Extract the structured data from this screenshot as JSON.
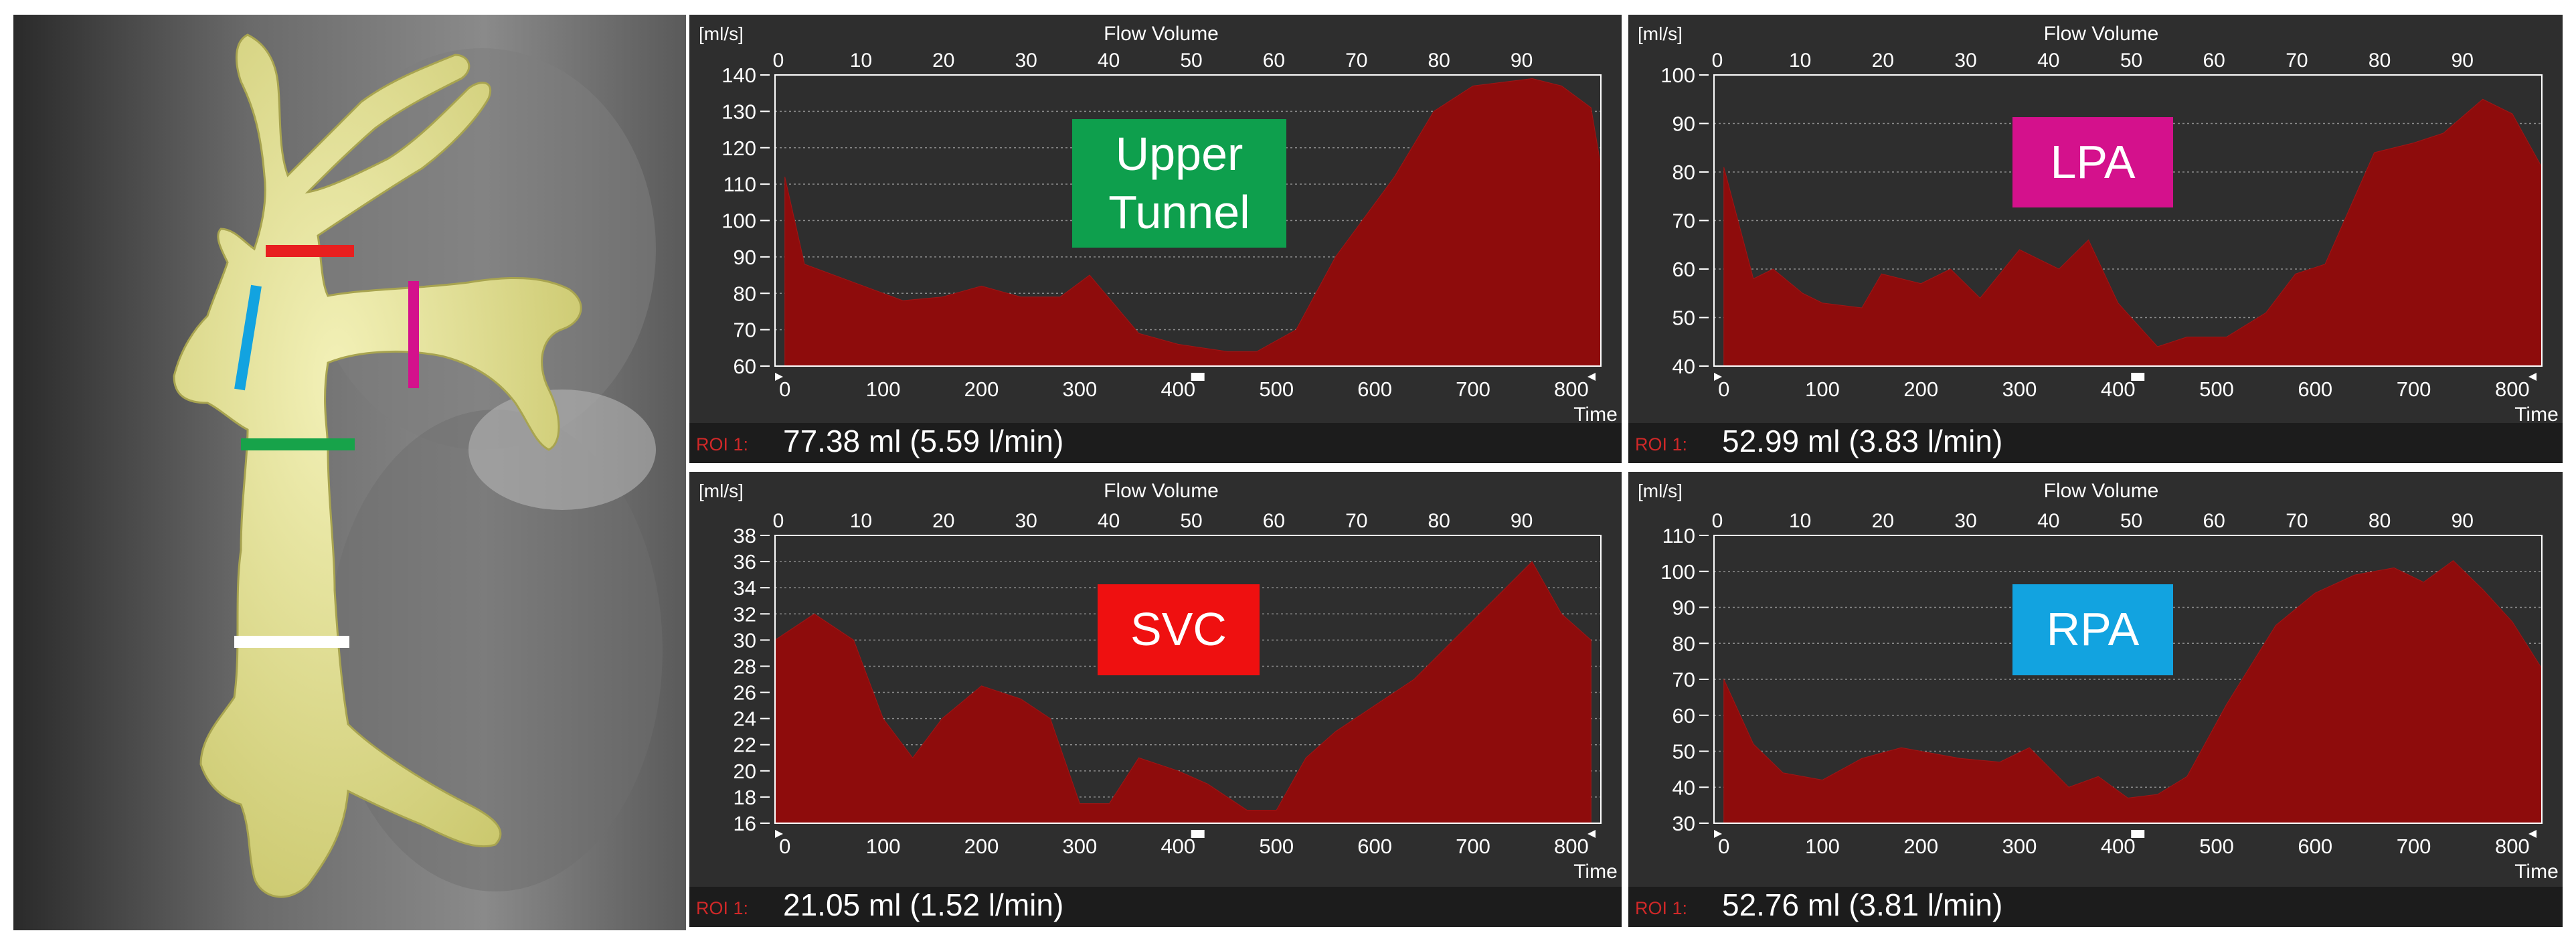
{
  "colors": {
    "panel_bg": "#2e2e2e",
    "footer_bg": "#1c1c1c",
    "area_fill": "#8e0c0c",
    "axis_text": "#ffffff",
    "roi_text": "#d02828",
    "marker_red": "#e81f1f",
    "marker_blue": "#12a3e0",
    "marker_magenta": "#d4118c",
    "marker_green": "#17a34a",
    "marker_white": "#ffffff",
    "vessel": "#e6e49c"
  },
  "charts": [
    {
      "tag": {
        "text": "Upper\nTunnel",
        "color": "#0e9f4d"
      },
      "unit_label": "[ml/s]",
      "title": "Flow Volume",
      "time_label": "Time",
      "roi_label": "ROI 1:",
      "roi_value": "77.38 ml (5.59 l/min)"
    },
    {
      "tag": {
        "text": "LPA",
        "color": "#d4118c"
      },
      "unit_label": "[ml/s]",
      "title": "Flow Volume",
      "time_label": "Time",
      "roi_label": "ROI 1:",
      "roi_value": "52.99 ml (3.83 l/min)"
    },
    {
      "tag": {
        "text": "SVC",
        "color": "#ef1010"
      },
      "unit_label": "[ml/s]",
      "title": "Flow Volume",
      "time_label": "Time",
      "roi_label": "ROI 1:",
      "roi_value": "21.05 ml (1.52 l/min)"
    },
    {
      "tag": {
        "text": "RPA",
        "color": "#12a3e0"
      },
      "unit_label": "[ml/s]",
      "title": "Flow Volume",
      "time_label": "Time",
      "roi_label": "ROI 1:",
      "roi_value": "52.76 ml (3.81 l/min)"
    }
  ],
  "chart_data": [
    {
      "type": "area",
      "title": "Flow Volume",
      "ylabel": "[ml/s]",
      "xlabel": "Time",
      "series": [
        {
          "name": "Upper Tunnel",
          "x": [
            0,
            20,
            70,
            120,
            160,
            200,
            240,
            280,
            310,
            360,
            400,
            450,
            480,
            520,
            560,
            620,
            660,
            700,
            730,
            760,
            790,
            820,
            830
          ],
          "values": [
            112,
            88,
            83,
            78,
            79,
            82,
            79,
            79,
            85,
            69,
            66,
            64,
            64,
            70,
            90,
            112,
            130,
            137,
            138,
            139,
            137,
            131,
            115
          ]
        }
      ],
      "xlim": [
        -10,
        830
      ],
      "ylim": [
        60,
        140
      ],
      "yticks": [
        60,
        70,
        80,
        90,
        100,
        110,
        120,
        130,
        140
      ],
      "xticks_bottom": [
        0,
        100,
        200,
        300,
        400,
        500,
        600,
        700,
        800
      ],
      "xticks_top": [
        0,
        10,
        20,
        30,
        40,
        50,
        60,
        70,
        80,
        90
      ],
      "grid": true
    },
    {
      "type": "area",
      "title": "Flow Volume",
      "ylabel": "[ml/s]",
      "xlabel": "Time",
      "series": [
        {
          "name": "LPA",
          "x": [
            0,
            30,
            50,
            80,
            100,
            140,
            160,
            200,
            230,
            260,
            300,
            340,
            370,
            400,
            440,
            470,
            510,
            550,
            580,
            610,
            660,
            700,
            730,
            770,
            800,
            830
          ],
          "values": [
            81,
            58,
            60,
            55,
            53,
            52,
            59,
            57,
            60,
            54,
            64,
            60,
            66,
            53,
            44,
            46,
            46,
            51,
            59,
            61,
            84,
            86,
            88,
            95,
            92,
            81
          ]
        }
      ],
      "xlim": [
        -10,
        830
      ],
      "ylim": [
        40,
        100
      ],
      "yticks": [
        40,
        50,
        60,
        70,
        80,
        90,
        100
      ],
      "xticks_bottom": [
        0,
        100,
        200,
        300,
        400,
        500,
        600,
        700,
        800
      ],
      "xticks_top": [
        0,
        10,
        20,
        30,
        40,
        50,
        60,
        70,
        80,
        90
      ],
      "grid": true
    },
    {
      "type": "area",
      "title": "Flow Volume",
      "ylabel": "[ml/s]",
      "xlabel": "Time",
      "series": [
        {
          "name": "SVC",
          "x": [
            -10,
            30,
            70,
            100,
            130,
            160,
            200,
            240,
            270,
            300,
            330,
            360,
            400,
            430,
            470,
            500,
            530,
            560,
            600,
            640,
            680,
            720,
            760,
            790,
            820
          ],
          "values": [
            30,
            32,
            30,
            24,
            21,
            24,
            26.5,
            25.5,
            24,
            17.5,
            17.5,
            21,
            20,
            19,
            17,
            17,
            21,
            23,
            25,
            27,
            30,
            33,
            36,
            32,
            30
          ]
        }
      ],
      "xlim": [
        -10,
        830
      ],
      "ylim": [
        16,
        38
      ],
      "yticks": [
        16,
        18,
        20,
        22,
        24,
        26,
        28,
        30,
        32,
        34,
        36,
        38
      ],
      "xticks_bottom": [
        0,
        100,
        200,
        300,
        400,
        500,
        600,
        700,
        800
      ],
      "xticks_top": [
        0,
        10,
        20,
        30,
        40,
        50,
        60,
        70,
        80,
        90
      ],
      "grid": true
    },
    {
      "type": "area",
      "title": "Flow Volume",
      "ylabel": "[ml/s]",
      "xlabel": "Time",
      "series": [
        {
          "name": "RPA",
          "x": [
            0,
            30,
            60,
            100,
            140,
            180,
            240,
            280,
            310,
            350,
            380,
            410,
            440,
            470,
            510,
            560,
            600,
            640,
            680,
            710,
            740,
            770,
            800,
            830
          ],
          "values": [
            70,
            52,
            44,
            42,
            48,
            51,
            48,
            47,
            51,
            40,
            43,
            37,
            38,
            43,
            63,
            85,
            94,
            99,
            101,
            97,
            103,
            95,
            86,
            73
          ]
        }
      ],
      "xlim": [
        -10,
        830
      ],
      "ylim": [
        30,
        110
      ],
      "yticks": [
        30,
        40,
        50,
        60,
        70,
        80,
        90,
        100,
        110
      ],
      "xticks_bottom": [
        0,
        100,
        200,
        300,
        400,
        500,
        600,
        700,
        800
      ],
      "xticks_top": [
        0,
        10,
        20,
        30,
        40,
        50,
        60,
        70,
        80,
        90
      ],
      "grid": true
    }
  ]
}
